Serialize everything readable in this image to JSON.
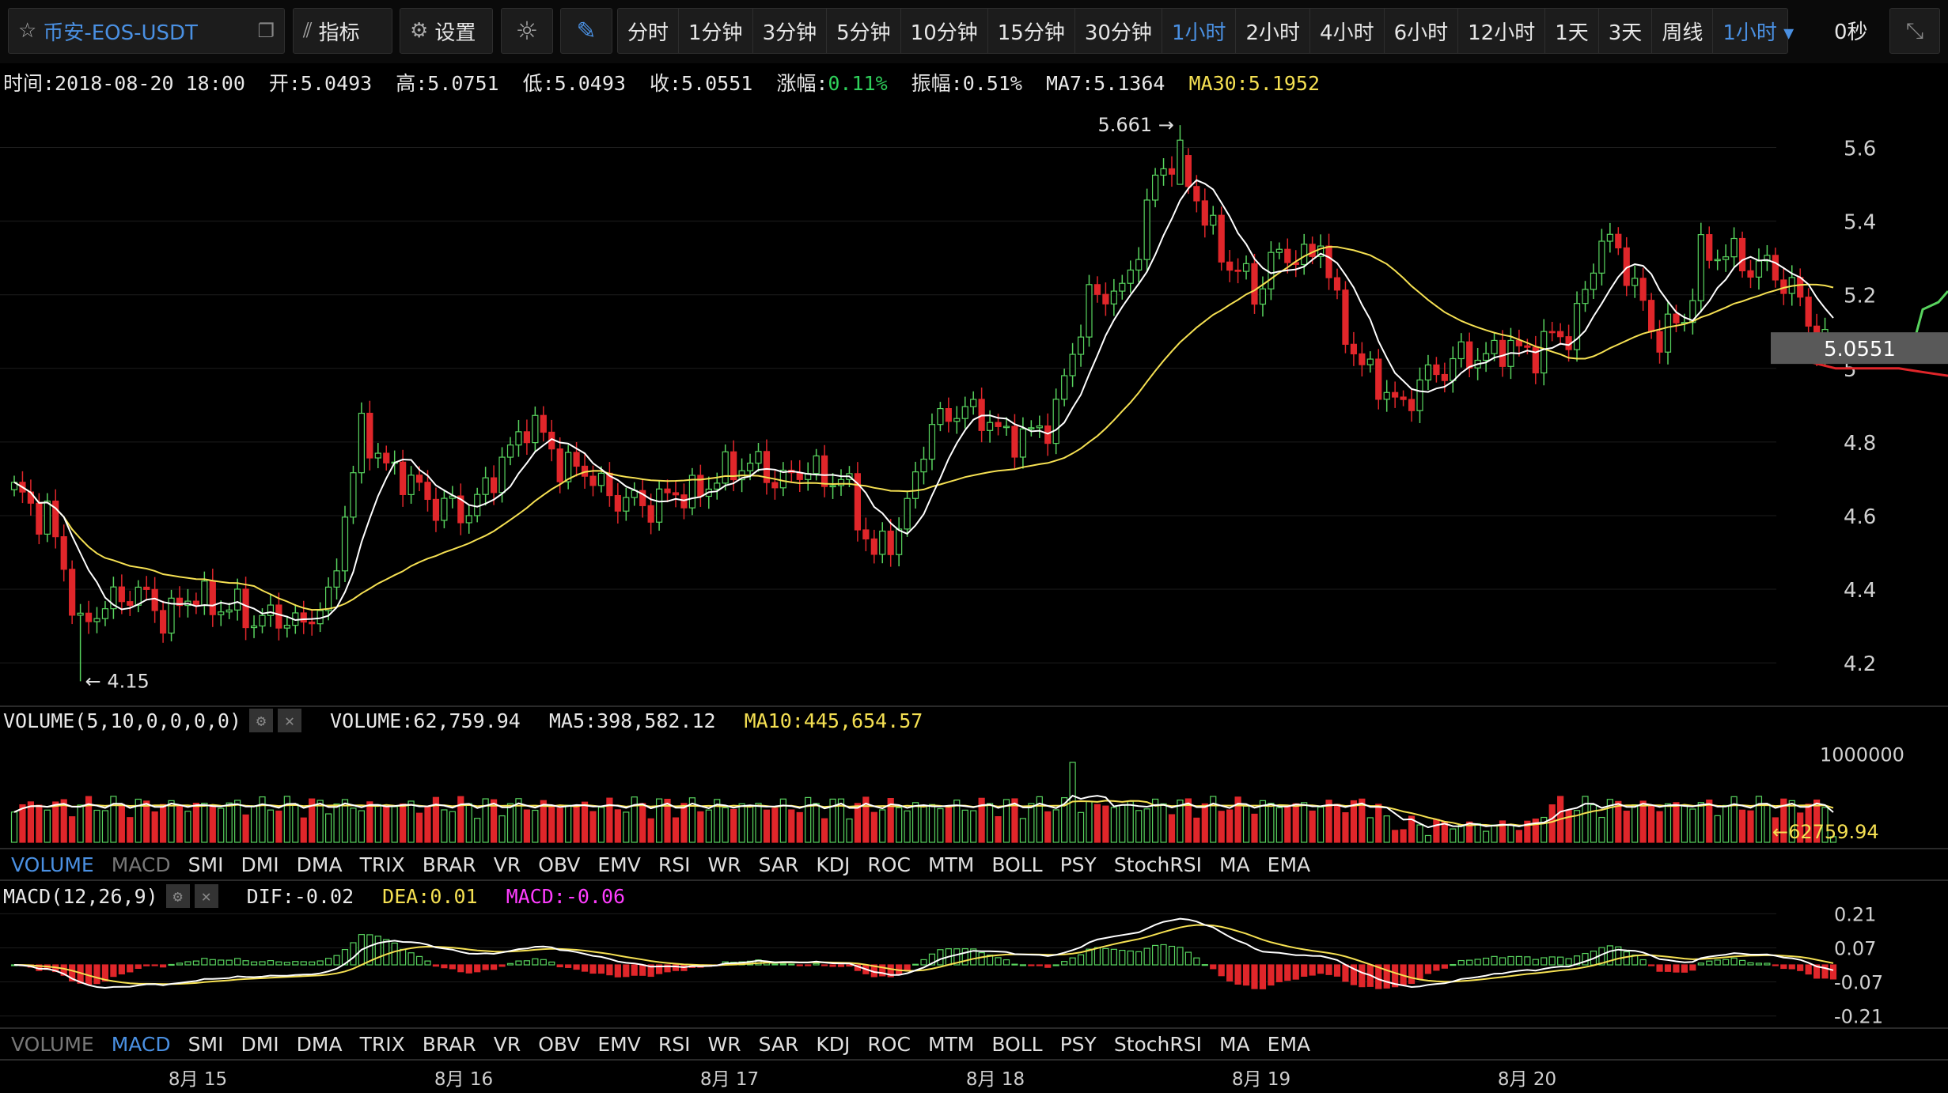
{
  "toolbar": {
    "symbol": "币安-EOS-USDT",
    "indicator_label": "指标",
    "settings_label": "设置",
    "intervals": [
      "分时",
      "1分钟",
      "3分钟",
      "5分钟",
      "10分钟",
      "15分钟",
      "30分钟",
      "1小时",
      "2小时",
      "4小时",
      "6小时",
      "12小时",
      "1天",
      "3天",
      "周线"
    ],
    "active_interval": "1小时",
    "interval_dropdown": "1小时",
    "timer": "0秒"
  },
  "info": {
    "time": "时间:2018-08-20 18:00",
    "open": "开:5.0493",
    "high": "高:5.0751",
    "low": "低:5.0493",
    "close": "收:5.0551",
    "change_label": "涨幅:",
    "change_value": "0.11%",
    "amplitude": "振幅:0.51%",
    "ma7": "MA7:5.1364",
    "ma30": "MA30:5.1952"
  },
  "volume_panel": {
    "title": "VOLUME(5,10,0,0,0,0)",
    "volume": "VOLUME:62,759.94",
    "ma5": "MA5:398,582.12",
    "ma10": "MA10:445,654.57"
  },
  "macd_panel": {
    "title": "MACD(12,26,9)",
    "dif": "DIF:-0.02",
    "dea": "DEA:0.01",
    "macd": "MACD:-0.06"
  },
  "indicator_tabs": [
    "VOLUME",
    "MACD",
    "SMI",
    "DMI",
    "DMA",
    "TRIX",
    "BRAR",
    "VR",
    "OBV",
    "EMV",
    "RSI",
    "WR",
    "SAR",
    "KDJ",
    "ROC",
    "MTM",
    "BOLL",
    "PSY",
    "StochRSI",
    "MA",
    "EMA"
  ],
  "colors": {
    "up": "#58d35e",
    "down": "#e0262a",
    "ma7": "#ffffff",
    "ma30": "#f5e052",
    "grid": "#1d1d1d",
    "macd_pos": "#58d35e",
    "macd_neg": "#e0262a"
  },
  "chart_data": {
    "type": "candlestick",
    "price_axis": {
      "ticks": [
        5.6,
        5.4,
        5.2,
        5,
        4.8,
        4.6,
        4.4,
        4.2
      ],
      "ylim": [
        4.11,
        5.7
      ]
    },
    "volume_axis": {
      "ticks": [
        "1000000"
      ],
      "current_label": "62759.94",
      "ylim": [
        0,
        1200000
      ]
    },
    "macd_axis": {
      "ticks": [
        "0.21",
        "0.07",
        "-0.07",
        "-0.21"
      ],
      "ylim": [
        -0.26,
        0.26
      ]
    },
    "x_labels": [
      "8月 15",
      "8月 16",
      "8月 17",
      "8月 18",
      "8月 19",
      "8月 20"
    ],
    "last_price": "5.0551",
    "max_label": "5.661",
    "min_label": "4.15",
    "anchors": [
      [
        0,
        4.66
      ],
      [
        4,
        4.6
      ],
      [
        8,
        4.3
      ],
      [
        14,
        4.4
      ],
      [
        18,
        4.33
      ],
      [
        22,
        4.38
      ],
      [
        28,
        4.33
      ],
      [
        34,
        4.31
      ],
      [
        38,
        4.35
      ],
      [
        40,
        4.62
      ],
      [
        42,
        4.82
      ],
      [
        46,
        4.72
      ],
      [
        50,
        4.65
      ],
      [
        54,
        4.6
      ],
      [
        58,
        4.7
      ],
      [
        62,
        4.86
      ],
      [
        66,
        4.75
      ],
      [
        70,
        4.7
      ],
      [
        74,
        4.63
      ],
      [
        78,
        4.64
      ],
      [
        84,
        4.68
      ],
      [
        88,
        4.75
      ],
      [
        92,
        4.7
      ],
      [
        96,
        4.72
      ],
      [
        100,
        4.7
      ],
      [
        104,
        4.5
      ],
      [
        107,
        4.55
      ],
      [
        110,
        4.8
      ],
      [
        114,
        4.9
      ],
      [
        118,
        4.85
      ],
      [
        122,
        4.8
      ],
      [
        126,
        4.88
      ],
      [
        130,
        5.2
      ],
      [
        134,
        5.2
      ],
      [
        138,
        5.5
      ],
      [
        140,
        5.58
      ],
      [
        142,
        5.5
      ],
      [
        146,
        5.32
      ],
      [
        150,
        5.2
      ],
      [
        152,
        5.3
      ],
      [
        156,
        5.3
      ],
      [
        158,
        5.35
      ],
      [
        160,
        5.15
      ],
      [
        164,
        4.97
      ],
      [
        168,
        4.9
      ],
      [
        172,
        5.0
      ],
      [
        176,
        5.03
      ],
      [
        180,
        5.05
      ],
      [
        184,
        5.05
      ],
      [
        188,
        5.1
      ],
      [
        190,
        5.2
      ],
      [
        192,
        5.35
      ],
      [
        194,
        5.33
      ],
      [
        198,
        5.1
      ],
      [
        202,
        5.12
      ],
      [
        204,
        5.32
      ],
      [
        208,
        5.3
      ],
      [
        212,
        5.27
      ],
      [
        216,
        5.2
      ],
      [
        218,
        5.05
      ],
      [
        220,
        5.05
      ]
    ],
    "candle_count": 221,
    "last_candle": {
      "open": 5.0493,
      "high": 5.0751,
      "low": 5.0493,
      "close": 5.0551
    },
    "ma_series": [
      {
        "name": "MA7"
      },
      {
        "name": "MA30"
      }
    ],
    "volume_series": [
      {
        "name": "MA5"
      },
      {
        "name": "MA10"
      }
    ],
    "macd_series": [
      {
        "name": "DIF"
      },
      {
        "name": "DEA"
      },
      {
        "name": "MACD"
      }
    ]
  }
}
